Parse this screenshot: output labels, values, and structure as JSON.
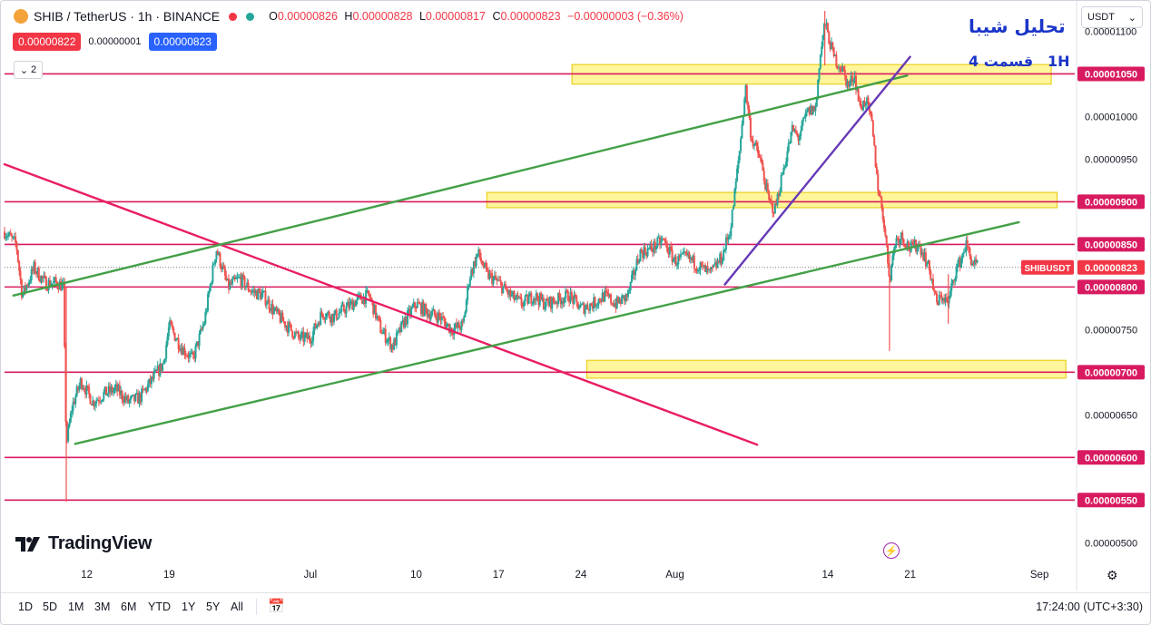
{
  "header": {
    "symbol": "SHIB / TetherUS · 1h · BINANCE",
    "ohlc_open": "0.00000826",
    "ohlc_high": "0.00000828",
    "ohlc_low": "0.00000817",
    "ohlc_close": "0.00000823",
    "ohlc_change": "−0.00000003 (−0.36%)",
    "o_lbl": "O",
    "h_lbl": "H",
    "l_lbl": "L",
    "c_lbl": "C",
    "bid": "0.00000822",
    "spread": "0.00000001",
    "ask": "0.00000823",
    "collapse_count": "2",
    "currency": "USDT"
  },
  "annotation": {
    "title": "تحلیل شیبا",
    "part": "قسمت 4",
    "timeframe": "1H"
  },
  "branding": {
    "name": "TradingView"
  },
  "bottom": {
    "ranges": [
      "1D",
      "5D",
      "1M",
      "3M",
      "6M",
      "YTD",
      "1Y",
      "5Y",
      "All"
    ],
    "clock": "17:24:00 (UTC+3:30)"
  },
  "colors": {
    "up": "#26a69a",
    "down": "#ef5350",
    "level": "#d81b60",
    "zone": "#fff27a",
    "channel": "#43a047",
    "trend_down": "#e91e63",
    "trend_up": "#673ab7",
    "ask_box": "#2962ff",
    "bid_box": "#f23645"
  },
  "chart_data": {
    "type": "candlestick",
    "symbol": "SHIBUSDT",
    "ylim": [
      4.79e-06,
      1.125e-05
    ],
    "y_tick_labels": [
      "0.00000500",
      "0.00000650",
      "0.00000750",
      "0.00000950",
      "0.00001000",
      "0.00001100"
    ],
    "y_tick_values": [
      5e-06,
      6.5e-06,
      7.5e-06,
      9.5e-06,
      1e-05,
      1.1e-05
    ],
    "x_tick_labels": [
      "12",
      "19",
      "Jul",
      "10",
      "17",
      "24",
      "Aug",
      "14",
      "21",
      "Sep"
    ],
    "x_tick_values": [
      "2023-06-12",
      "2023-06-19",
      "2023-07-01",
      "2023-07-10",
      "2023-07-17",
      "2023-07-24",
      "2023-08-01",
      "2023-08-14",
      "2023-08-21",
      "2023-09-01"
    ],
    "x_range": [
      "2023-06-05 00:00",
      "2023-09-04 00:00"
    ],
    "price_levels": [
      {
        "value": 1.05e-05,
        "label": "0.00001050"
      },
      {
        "value": 9e-06,
        "label": "0.00000900"
      },
      {
        "value": 8.5e-06,
        "label": "0.00000850"
      },
      {
        "value": 8e-06,
        "label": "0.00000800"
      },
      {
        "value": 7e-06,
        "label": "0.00000700"
      },
      {
        "value": 6e-06,
        "label": "0.00000600"
      },
      {
        "value": 5.5e-06,
        "label": "0.00000550"
      }
    ],
    "last_price": {
      "value": 8.23e-06,
      "label": "0.00000823",
      "symbol_label": "SHIBUSDT"
    },
    "zones": [
      {
        "from": "2023-07-23 06:00",
        "to": "2023-09-02 00:00",
        "low": 1.038e-05,
        "high": 1.061e-05
      },
      {
        "from": "2023-07-16 00:00",
        "to": "2023-09-02 12:00",
        "low": 8.93e-06,
        "high": 9.11e-06
      },
      {
        "from": "2023-07-24 12:00",
        "to": "2023-09-03 06:00",
        "low": 6.93e-06,
        "high": 7.14e-06
      }
    ],
    "trendlines": [
      {
        "color": "trend_down",
        "from": [
          "2023-06-05 00:00",
          9.44e-06
        ],
        "to": [
          "2023-08-08 00:00",
          6.15e-06
        ]
      },
      {
        "color": "channel",
        "from": [
          "2023-06-05 18:00",
          7.9e-06
        ],
        "to": [
          "2023-08-20 18:00",
          1.048e-05
        ]
      },
      {
        "color": "channel",
        "from": [
          "2023-06-11 00:00",
          6.16e-06
        ],
        "to": [
          "2023-08-30 06:00",
          8.76e-06
        ]
      },
      {
        "color": "trend_up",
        "from": [
          "2023-08-05 06:00",
          8.03e-06
        ],
        "to": [
          "2023-08-21 00:00",
          1.07e-05
        ]
      }
    ],
    "price_path": [
      [
        "2023-06-05 00:00",
        8.65e-06
      ],
      [
        "2023-06-06 00:00",
        8.5e-06
      ],
      [
        "2023-06-06 12:00",
        7.9e-06
      ],
      [
        "2023-06-07 12:00",
        8.22e-06
      ],
      [
        "2023-06-08 12:00",
        8.04e-06
      ],
      [
        "2023-06-09 12:00",
        8.05e-06
      ],
      [
        "2023-06-10 00:00",
        8e-06
      ],
      [
        "2023-06-10 06:00",
        6.15e-06
      ],
      [
        "2023-06-10 18:00",
        6.6e-06
      ],
      [
        "2023-06-11 12:00",
        6.9e-06
      ],
      [
        "2023-06-12 12:00",
        6.65e-06
      ],
      [
        "2023-06-13 12:00",
        6.75e-06
      ],
      [
        "2023-06-14 12:00",
        6.8e-06
      ],
      [
        "2023-06-15 12:00",
        6.65e-06
      ],
      [
        "2023-06-16 12:00",
        6.7e-06
      ],
      [
        "2023-06-17 12:00",
        6.9e-06
      ],
      [
        "2023-06-18 12:00",
        7.1e-06
      ],
      [
        "2023-06-19 00:00",
        7.55e-06
      ],
      [
        "2023-06-20 00:00",
        7.3e-06
      ],
      [
        "2023-06-21 00:00",
        7.15e-06
      ],
      [
        "2023-06-22 00:00",
        7.6e-06
      ],
      [
        "2023-06-23 00:00",
        8.45e-06
      ],
      [
        "2023-06-24 00:00",
        8e-06
      ],
      [
        "2023-06-25 00:00",
        8.1e-06
      ],
      [
        "2023-06-26 00:00",
        7.95e-06
      ],
      [
        "2023-06-27 00:00",
        7.9e-06
      ],
      [
        "2023-06-28 00:00",
        7.7e-06
      ],
      [
        "2023-06-29 00:00",
        7.55e-06
      ],
      [
        "2023-06-30 00:00",
        7.4e-06
      ],
      [
        "2023-07-01 00:00",
        7.4e-06
      ],
      [
        "2023-07-02 00:00",
        7.7e-06
      ],
      [
        "2023-07-03 00:00",
        7.65e-06
      ],
      [
        "2023-07-04 00:00",
        7.75e-06
      ],
      [
        "2023-07-05 00:00",
        7.85e-06
      ],
      [
        "2023-07-06 00:00",
        7.9e-06
      ],
      [
        "2023-07-07 00:00",
        7.5e-06
      ],
      [
        "2023-07-08 00:00",
        7.3e-06
      ],
      [
        "2023-07-09 00:00",
        7.6e-06
      ],
      [
        "2023-07-10 00:00",
        7.8e-06
      ],
      [
        "2023-07-11 00:00",
        7.7e-06
      ],
      [
        "2023-07-12 00:00",
        7.65e-06
      ],
      [
        "2023-07-13 00:00",
        7.5e-06
      ],
      [
        "2023-07-14 00:00",
        7.55e-06
      ],
      [
        "2023-07-14 12:00",
        8.1e-06
      ],
      [
        "2023-07-15 06:00",
        8.4e-06
      ],
      [
        "2023-07-16 00:00",
        8.15e-06
      ],
      [
        "2023-07-17 00:00",
        8.05e-06
      ],
      [
        "2023-07-18 00:00",
        7.9e-06
      ],
      [
        "2023-07-19 00:00",
        7.8e-06
      ],
      [
        "2023-07-20 00:00",
        7.9e-06
      ],
      [
        "2023-07-21 00:00",
        7.8e-06
      ],
      [
        "2023-07-22 00:00",
        7.85e-06
      ],
      [
        "2023-07-23 00:00",
        7.9e-06
      ],
      [
        "2023-07-24 00:00",
        7.75e-06
      ],
      [
        "2023-07-25 00:00",
        7.8e-06
      ],
      [
        "2023-07-26 00:00",
        7.9e-06
      ],
      [
        "2023-07-27 00:00",
        7.8e-06
      ],
      [
        "2023-07-28 00:00",
        7.9e-06
      ],
      [
        "2023-07-29 00:00",
        8.4e-06
      ],
      [
        "2023-07-30 00:00",
        8.45e-06
      ],
      [
        "2023-07-31 00:00",
        8.55e-06
      ],
      [
        "2023-08-01 00:00",
        8.3e-06
      ],
      [
        "2023-08-02 00:00",
        8.35e-06
      ],
      [
        "2023-08-03 00:00",
        8.25e-06
      ],
      [
        "2023-08-04 00:00",
        8.15e-06
      ],
      [
        "2023-08-05 00:00",
        8.35e-06
      ],
      [
        "2023-08-05 18:00",
        8.7e-06
      ],
      [
        "2023-08-06 12:00",
        9.6e-06
      ],
      [
        "2023-08-07 00:00",
        1.035e-05
      ],
      [
        "2023-08-07 12:00",
        9.75e-06
      ],
      [
        "2023-08-08 06:00",
        9.5e-06
      ],
      [
        "2023-08-09 00:00",
        9e-06
      ],
      [
        "2023-08-09 12:00",
        8.9e-06
      ],
      [
        "2023-08-10 06:00",
        9.4e-06
      ],
      [
        "2023-08-11 00:00",
        9.85e-06
      ],
      [
        "2023-08-11 12:00",
        9.75e-06
      ],
      [
        "2023-08-12 06:00",
        1.005e-05
      ],
      [
        "2023-08-13 00:00",
        1.01e-05
      ],
      [
        "2023-08-13 06:00",
        1.06e-05
      ],
      [
        "2023-08-13 18:00",
        1.11e-05
      ],
      [
        "2023-08-14 12:00",
        1.07e-05
      ],
      [
        "2023-08-15 06:00",
        1.055e-05
      ],
      [
        "2023-08-15 18:00",
        1.035e-05
      ],
      [
        "2023-08-16 06:00",
        1.05e-05
      ],
      [
        "2023-08-16 18:00",
        1.01e-05
      ],
      [
        "2023-08-17 06:00",
        1.02e-05
      ],
      [
        "2023-08-17 18:00",
        9.9e-06
      ],
      [
        "2023-08-18 06:00",
        9.2e-06
      ],
      [
        "2023-08-18 18:00",
        8.8e-06
      ],
      [
        "2023-08-19 06:00",
        8.1e-06
      ],
      [
        "2023-08-19 18:00",
        8.55e-06
      ],
      [
        "2023-08-20 06:00",
        8.6e-06
      ],
      [
        "2023-08-21 00:00",
        8.45e-06
      ],
      [
        "2023-08-21 18:00",
        8.5e-06
      ],
      [
        "2023-08-22 06:00",
        8.35e-06
      ],
      [
        "2023-08-22 18:00",
        8.15e-06
      ],
      [
        "2023-08-23 06:00",
        7.8e-06
      ],
      [
        "2023-08-23 18:00",
        7.9e-06
      ],
      [
        "2023-08-24 06:00",
        7.8e-06
      ],
      [
        "2023-08-24 18:00",
        8.15e-06
      ],
      [
        "2023-08-25 06:00",
        8.3e-06
      ],
      [
        "2023-08-25 18:00",
        8.5e-06
      ],
      [
        "2023-08-26 06:00",
        8.3e-06
      ],
      [
        "2023-08-26 18:00",
        8.23e-06
      ]
    ],
    "spikes": [
      {
        "time": "2023-06-10 06:00",
        "low": 5.48e-06,
        "high": 8e-06
      },
      {
        "time": "2023-08-19 06:00",
        "low": 7.25e-06,
        "high": 8.4e-06
      },
      {
        "time": "2023-08-24 06:00",
        "low": 7.57e-06,
        "high": 8.15e-06
      },
      {
        "time": "2023-08-13 18:00",
        "low": 1.06e-05,
        "high": 1.124e-05
      }
    ]
  }
}
